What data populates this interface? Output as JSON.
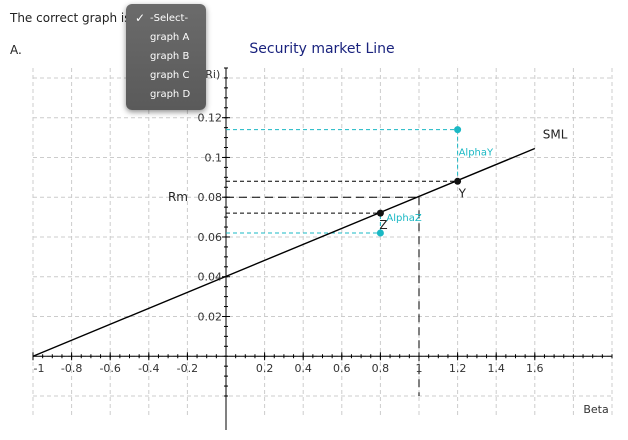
{
  "question": {
    "prefix": "The correct graph is",
    "option_label": "A."
  },
  "dropdown": {
    "selected": "-Select-",
    "options": [
      "-Select-",
      "graph A",
      "graph B",
      "graph C",
      "graph D"
    ],
    "check_icon": "checkmark-icon"
  },
  "chart_data": {
    "type": "line",
    "title": "Security market Line",
    "xlabel": "Beta",
    "ylabel": "E(Ri)",
    "xlim": [
      -1,
      2
    ],
    "ylim": [
      -0.02,
      0.145
    ],
    "grid": true,
    "x_ticks": [
      "-1",
      "-0.8",
      "-0.6",
      "-0.4",
      "-0.2",
      "0.2",
      "0.4",
      "0.6",
      "0.8",
      "1",
      "1.2",
      "1.4",
      "1.6"
    ],
    "y_ticks": [
      "0.02",
      "0.04",
      "0.06",
      "0.08",
      "0.1",
      "0.12"
    ],
    "series": [
      {
        "name": "SML",
        "x": [
          -1,
          1.6
        ],
        "y": [
          0.0,
          0.1045
        ]
      }
    ],
    "points": [
      {
        "label": "Y",
        "x": 1.2,
        "y": 0.088
      },
      {
        "label": "Z",
        "x": 0.8,
        "y": 0.072
      },
      {
        "label": "",
        "x": 1.2,
        "y": 0.114
      },
      {
        "label": "",
        "x": 0.8,
        "y": 0.062
      }
    ],
    "annotations": {
      "rm_label": "Rm",
      "rm_value": 0.08,
      "rm_beta": 1.0,
      "alpha_y": "AlphaY",
      "alpha_z": "AlphaZ"
    },
    "colors": {
      "sml": "#000000",
      "points_sml": "#111111",
      "points_alpha": "#1ab8c4",
      "grid": "#cccccc",
      "title": "#1a237e"
    }
  }
}
